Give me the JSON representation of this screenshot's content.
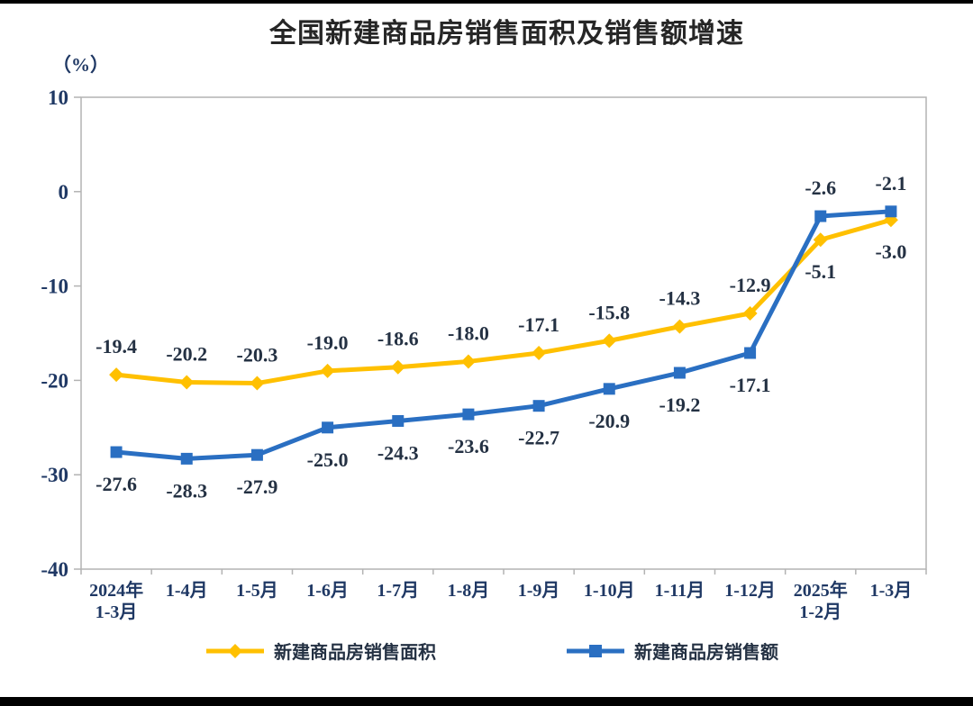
{
  "title": "全国新建商品房销售面积及销售额增速",
  "chart_data": {
    "type": "line",
    "title": "全国新建商品房销售面积及销售额增速",
    "unit_label": "（%）",
    "categories": [
      [
        "2024年",
        "1-3月"
      ],
      [
        "1-4月"
      ],
      [
        "1-5月"
      ],
      [
        "1-6月"
      ],
      [
        "1-7月"
      ],
      [
        "1-8月"
      ],
      [
        "1-9月"
      ],
      [
        "1-10月"
      ],
      [
        "1-11月"
      ],
      [
        "1-12月"
      ],
      [
        "2025年",
        "1-2月"
      ],
      [
        "1-3月"
      ]
    ],
    "series": [
      {
        "name": "新建商品房销售面积",
        "color": "#FFC000",
        "marker": "diamond",
        "values": [
          -19.4,
          -20.2,
          -20.3,
          -19.0,
          -18.6,
          -18.0,
          -17.1,
          -15.8,
          -14.3,
          -12.9,
          -5.1,
          -3.0
        ],
        "label_side": [
          "above",
          "above",
          "above",
          "above",
          "above",
          "above",
          "above",
          "above",
          "above",
          "above",
          "below",
          "below"
        ]
      },
      {
        "name": "新建商品房销售额",
        "color": "#2A6FC2",
        "marker": "square",
        "values": [
          -27.6,
          -28.3,
          -27.9,
          -25.0,
          -24.3,
          -23.6,
          -22.7,
          -20.9,
          -19.2,
          -17.1,
          -2.6,
          -2.1
        ],
        "label_side": [
          "below",
          "below",
          "below",
          "below",
          "below",
          "below",
          "below",
          "below",
          "below",
          "below",
          "above",
          "above"
        ]
      }
    ],
    "ylim": [
      -40,
      10
    ],
    "yticks": [
      10,
      0,
      -10,
      -20,
      -30,
      -40
    ],
    "grid": false,
    "legend_position": "bottom",
    "colors": {
      "border": "#b3b3b3",
      "axis_text": "#1f3864",
      "data_label": "#243143",
      "title": "#262626"
    }
  }
}
